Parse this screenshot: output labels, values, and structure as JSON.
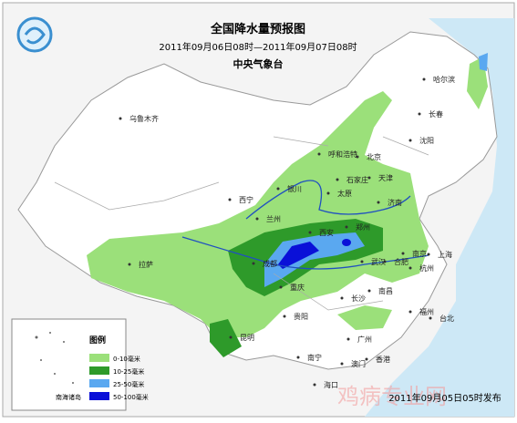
{
  "header": {
    "title": "全国降水量预报图",
    "period": "2011年09月06日08时—2011年09月07日08时",
    "issuer": "中央气象台"
  },
  "cities": [
    "乌鲁木齐",
    "哈尔滨",
    "长春",
    "沈阳",
    "呼和浩特",
    "北京",
    "天津",
    "石家庄",
    "太原",
    "银川",
    "西宁",
    "兰州",
    "济南",
    "郑州",
    "西安",
    "南京",
    "合肥",
    "上海",
    "杭州",
    "武汉",
    "成都",
    "重庆",
    "拉萨",
    "长沙",
    "南昌",
    "贵阳",
    "昆明",
    "福州",
    "台北",
    "南宁",
    "广州",
    "香港",
    "澳门",
    "海口"
  ],
  "inset": {
    "label": "南海诸岛"
  },
  "legend": {
    "title": "图例",
    "items": [
      {
        "label": "0-10毫米",
        "color": "#9be07a"
      },
      {
        "label": "10-25毫米",
        "color": "#2e9a2a"
      },
      {
        "label": "25-50毫米",
        "color": "#5aa8f0"
      },
      {
        "label": "50-100毫米",
        "color": "#0a10d8"
      }
    ]
  },
  "footer": {
    "issued": "2011年09月05日05时发布",
    "watermark": "鸡病专业网"
  }
}
